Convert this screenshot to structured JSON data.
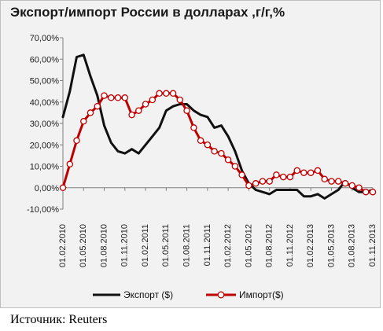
{
  "chart_data": {
    "type": "line",
    "title": "Экспорт/импорт России в долларах ,г/г,%",
    "xlabel": "",
    "ylabel": "",
    "ylim": [
      -0.1,
      0.7
    ],
    "yticks": [
      -0.1,
      0.0,
      0.1,
      0.2,
      0.3,
      0.4,
      0.5,
      0.6,
      0.7
    ],
    "ytick_labels": [
      "-10,00%",
      "0,00%",
      "10,00%",
      "20,00%",
      "30,00%",
      "40,00%",
      "50,00%",
      "60,00%",
      "70,00%"
    ],
    "x_tick_labels": [
      "01.02.2010",
      "01.05.2010",
      "01.08.2010",
      "01.11.2010",
      "01.02.2011",
      "01.05.2011",
      "01.08.2011",
      "01.11.2011",
      "01.02.2012",
      "01.05.2012",
      "01.08.2012",
      "01.11.2012",
      "01.02.2013",
      "01.05.2013",
      "01.08.2013",
      "01.11.2013"
    ],
    "x_start": "01.02.2010",
    "x_end": "01.11.2013",
    "grid": false,
    "legend_position": "bottom",
    "series": [
      {
        "name": "Экспорт ($)",
        "color": "#111111",
        "marker": "none",
        "values": [
          0.33,
          0.45,
          0.61,
          0.62,
          0.52,
          0.43,
          0.29,
          0.21,
          0.17,
          0.16,
          0.18,
          0.16,
          0.2,
          0.24,
          0.28,
          0.36,
          0.38,
          0.39,
          0.39,
          0.36,
          0.34,
          0.33,
          0.28,
          0.29,
          0.24,
          0.17,
          0.08,
          0.02,
          -0.01,
          -0.02,
          -0.03,
          -0.01,
          -0.01,
          -0.01,
          -0.01,
          -0.04,
          -0.04,
          -0.03,
          -0.05,
          -0.03,
          -0.01,
          0.03,
          0.0,
          -0.02,
          -0.02,
          -0.01
        ]
      },
      {
        "name": "Импорт($)",
        "color": "#c00000",
        "marker": "circle",
        "values": [
          0.0,
          0.11,
          0.22,
          0.31,
          0.35,
          0.38,
          0.43,
          0.42,
          0.42,
          0.42,
          0.34,
          0.36,
          0.39,
          0.41,
          0.44,
          0.44,
          0.44,
          0.41,
          0.36,
          0.28,
          0.22,
          0.2,
          0.17,
          0.16,
          0.13,
          0.1,
          0.06,
          0.01,
          0.02,
          0.03,
          0.03,
          0.06,
          0.05,
          0.05,
          0.08,
          0.07,
          0.07,
          0.08,
          0.04,
          0.03,
          0.03,
          0.02,
          0.01,
          0.0,
          -0.02,
          -0.02
        ]
      }
    ]
  },
  "source_text": "Источник: Reuters"
}
